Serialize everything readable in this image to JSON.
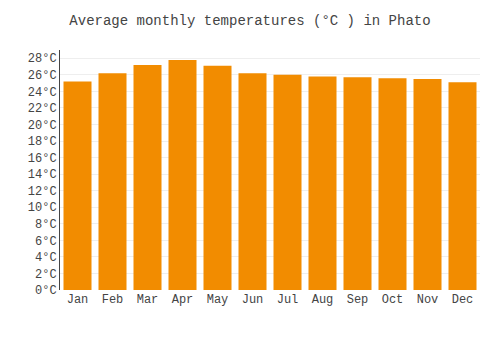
{
  "chart_data": {
    "type": "bar",
    "title": "Average monthly temperatures (°C ) in Phato",
    "categories": [
      "Jan",
      "Feb",
      "Mar",
      "Apr",
      "May",
      "Jun",
      "Jul",
      "Aug",
      "Sep",
      "Oct",
      "Nov",
      "Dec"
    ],
    "values": [
      25.2,
      26.2,
      27.2,
      27.8,
      27.1,
      26.2,
      26.0,
      25.8,
      25.7,
      25.6,
      25.5,
      25.1
    ],
    "color": "#F28C00",
    "ylim": [
      0,
      29
    ],
    "yticks": [
      {
        "value": 0,
        "label": "0°C"
      },
      {
        "value": 2,
        "label": "2°C"
      },
      {
        "value": 4,
        "label": "4°C"
      },
      {
        "value": 6,
        "label": "6°C"
      },
      {
        "value": 8,
        "label": "8°C"
      },
      {
        "value": 10,
        "label": "10°C"
      },
      {
        "value": 12,
        "label": "12°C"
      },
      {
        "value": 14,
        "label": "14°C"
      },
      {
        "value": 16,
        "label": "16°C"
      },
      {
        "value": 18,
        "label": "18°C"
      },
      {
        "value": 20,
        "label": "20°C"
      },
      {
        "value": 22,
        "label": "22°C"
      },
      {
        "value": 24,
        "label": "24°C"
      },
      {
        "value": 26,
        "label": "26°C"
      },
      {
        "value": 28,
        "label": "28°C"
      }
    ],
    "grid": true
  }
}
